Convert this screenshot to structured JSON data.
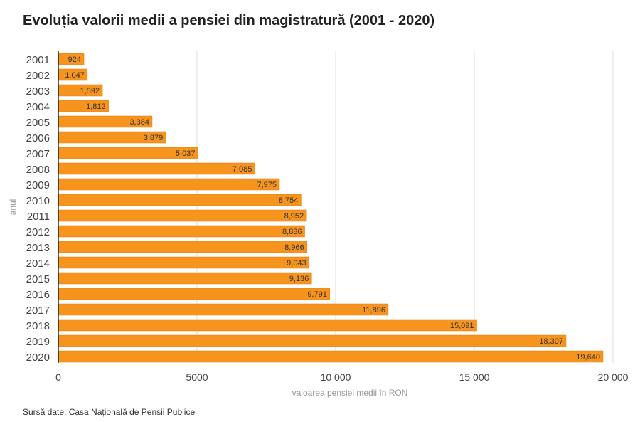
{
  "title": "Evoluția valorii medii a pensiei din magistratură (2001 - 2020)",
  "source": "Sursă date: Casa Națională de Pensii Publice",
  "chart_data": {
    "type": "bar",
    "orientation": "horizontal",
    "categories": [
      "2001",
      "2002",
      "2003",
      "2004",
      "2005",
      "2006",
      "2007",
      "2008",
      "2009",
      "2010",
      "2011",
      "2012",
      "2013",
      "2014",
      "2015",
      "2016",
      "2017",
      "2018",
      "2019",
      "2020"
    ],
    "values": [
      924,
      1047,
      1592,
      1812,
      3384,
      3879,
      5037,
      7085,
      7975,
      8754,
      8952,
      8886,
      8966,
      9043,
      9136,
      9791,
      11896,
      15091,
      18307,
      19640
    ],
    "value_labels": [
      "924",
      "1,047",
      "1,592",
      "1,812",
      "3,384",
      "3,879",
      "5,037",
      "7,085",
      "7,975",
      "8,754",
      "8,952",
      "8,886",
      "8,966",
      "9,043",
      "9,136",
      "9,791",
      "11,896",
      "15,091",
      "18,307",
      "19,640"
    ],
    "xlabel": "valoarea pensiei medii în RON",
    "ylabel": "anul",
    "xlim": [
      0,
      20000
    ],
    "xticks": [
      0,
      5000,
      10000,
      15000,
      20000
    ],
    "xtick_labels": [
      "0",
      "5000",
      "10 000",
      "15 000",
      "20 000"
    ],
    "grid": true,
    "colors": {
      "bar": "#F7941D",
      "bar_edge": "#E07F0E",
      "grid": "#dddddd",
      "axis": "#222222",
      "label": "#333333"
    }
  }
}
